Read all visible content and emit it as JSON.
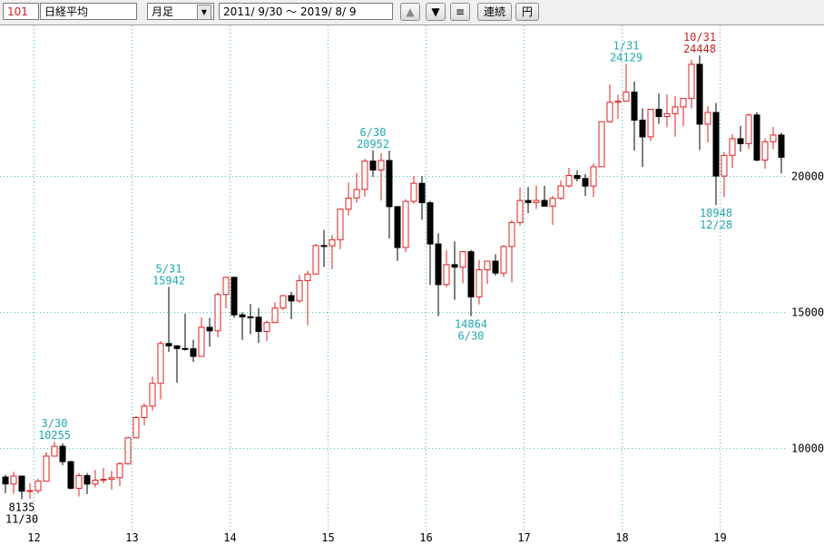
{
  "toolbar": {
    "code": "101",
    "name": "日経平均",
    "period": "月足",
    "range": "2011/ 9/30 ～ 2019/ 8/ 9",
    "buttons": [
      "▲",
      "▼",
      "≡",
      "連続",
      "円"
    ]
  },
  "chart_data": {
    "type": "candlestick",
    "categories": [
      null,
      null,
      null,
      null,
      "12",
      null,
      null,
      null,
      null,
      null,
      null,
      null,
      null,
      null,
      null,
      null,
      "13",
      null,
      null,
      null,
      null,
      null,
      null,
      null,
      null,
      null,
      null,
      null,
      "14",
      null,
      null,
      null,
      null,
      null,
      null,
      null,
      null,
      null,
      null,
      null,
      "15",
      null,
      null,
      null,
      null,
      null,
      null,
      null,
      null,
      null,
      null,
      null,
      "16",
      null,
      null,
      null,
      null,
      null,
      null,
      null,
      null,
      null,
      null,
      null,
      "17",
      null,
      null,
      null,
      null,
      null,
      null,
      null,
      null,
      null,
      null,
      null,
      "18",
      null,
      null,
      null,
      null,
      null,
      null,
      null,
      null,
      null,
      null,
      null,
      "19",
      null,
      null,
      null,
      null,
      null,
      null,
      null
    ],
    "open": [
      8955,
      8700,
      8988,
      8435,
      8455,
      8802,
      9723,
      10083,
      9520,
      8542,
      9006,
      8695,
      8839,
      8870,
      8928,
      9446,
      10395,
      11138,
      11559,
      12397,
      13860,
      13774,
      13677,
      13668,
      13388,
      14455,
      14327,
      15661,
      16291,
      14914,
      14841,
      14827,
      14304,
      14632,
      15162,
      15620,
      15425,
      16173,
      16413,
      17459,
      17450,
      17674,
      18797,
      19206,
      19520,
      20563,
      20235,
      20585,
      18890,
      17388,
      19083,
      19747,
      19033,
      17518,
      16026,
      16758,
      16666,
      17234,
      15575,
      16569,
      16887,
      16449,
      17425,
      18308,
      19114,
      19041,
      19118,
      18909,
      19196,
      19650,
      20033,
      19925,
      19646,
      20356,
      22011,
      22724,
      22764,
      23098,
      22068,
      21454,
      22467,
      22201,
      22304,
      22553,
      22865,
      24120,
      21920,
      22351,
      20014,
      20773,
      21385,
      21205,
      22258,
      20601,
      21275,
      21521
    ],
    "high": [
      9040,
      9152,
      9000,
      8723,
      8900,
      9866,
      10255,
      10190,
      9550,
      9100,
      9100,
      9222,
      9288,
      9180,
      9500,
      10433,
      11191,
      11662,
      12650,
      13950,
      15942,
      13800,
      14953,
      14000,
      14817,
      14800,
      15727,
      16320,
      16320,
      15005,
      15312,
      15165,
      14702,
      15376,
      15646,
      15759,
      16378,
      16533,
      17520,
      18030,
      17850,
      18826,
      19778,
      20133,
      20655,
      20952,
      20850,
      20946,
      18900,
      19160,
      20012,
      20012,
      19100,
      17905,
      17291,
      17613,
      17251,
      17300,
      16938,
      16888,
      17142,
      17473,
      18400,
      19592,
      19615,
      19668,
      19656,
      19289,
      19850,
      20318,
      20223,
      20080,
      20481,
      22011,
      23382,
      23000,
      24129,
      23486,
      22502,
      22467,
      23050,
      23011,
      22949,
      22869,
      24286,
      24448,
      22583,
      22698,
      20892,
      21556,
      21860,
      22307,
      22362,
      21400,
      21823,
      21600
    ],
    "low": [
      8359,
      8343,
      8135,
      8160,
      8349,
      8780,
      9750,
      9388,
      8500,
      8238,
      8328,
      8576,
      8725,
      8488,
      8619,
      9400,
      10398,
      10857,
      11400,
      11805,
      13556,
      12415,
      13600,
      13188,
      13400,
      13748,
      14087,
      15149,
      14808,
      13995,
      14203,
      13885,
      13964,
      14600,
      15100,
      14753,
      15350,
      14529,
      16400,
      16672,
      16592,
      17325,
      18570,
      19034,
      19258,
      19990,
      19115,
      17714,
      16901,
      17210,
      19000,
      18410,
      16017,
      14865,
      15930,
      15471,
      16070,
      14864,
      15300,
      16050,
      16356,
      16300,
      16111,
      18200,
      18650,
      18805,
      18909,
      18224,
      19144,
      19600,
      19813,
      19280,
      19240,
      20400,
      21972,
      22114,
      22900,
      20950,
      20347,
      21300,
      21931,
      21800,
      21462,
      21851,
      22500,
      20971,
      21243,
      18948,
      19241,
      20315,
      20911,
      21000,
      20553,
      20289,
      21003,
      20110
    ],
    "close": [
      8700,
      8988,
      8435,
      8455,
      8802,
      9723,
      10083,
      9520,
      8542,
      9006,
      8695,
      8839,
      8870,
      8928,
      9446,
      10395,
      11138,
      11559,
      12397,
      13860,
      13774,
      13677,
      13668,
      13388,
      14455,
      14327,
      15661,
      16291,
      14914,
      14841,
      14827,
      14304,
      14632,
      15162,
      15620,
      15425,
      16173,
      16413,
      17459,
      17450,
      17674,
      18797,
      19206,
      19520,
      20563,
      20235,
      20585,
      18890,
      17388,
      19083,
      19747,
      19033,
      17518,
      16026,
      16758,
      16666,
      17234,
      15575,
      16569,
      16887,
      16449,
      17425,
      18308,
      19114,
      19041,
      19118,
      18909,
      19196,
      19650,
      20033,
      19925,
      19646,
      20356,
      22011,
      22724,
      22764,
      23098,
      22068,
      21454,
      22467,
      22201,
      22304,
      22553,
      22865,
      24120,
      21920,
      22351,
      20014,
      20773,
      21385,
      21205,
      22258,
      20601,
      21275,
      21521,
      20704
    ],
    "up_color": "#e02020",
    "down_color": "#000000",
    "ylim": [
      6990,
      25550
    ],
    "yticks": [
      10000,
      15000,
      20000
    ],
    "grid": true,
    "grid_color": "#3cb8b8",
    "annotations": [
      {
        "date": "11/30",
        "value": 8135,
        "color": "#000000"
      },
      {
        "date": "3/30",
        "value": 10255,
        "color": "#20a8b0"
      },
      {
        "date": "5/31",
        "value": 15942,
        "color": "#20a8b0"
      },
      {
        "date": "6/30",
        "value": 20952,
        "color": "#20a8b0"
      },
      {
        "date": "6/30",
        "value": 14864,
        "color": "#20a8b0"
      },
      {
        "date": "1/31",
        "value": 24129,
        "color": "#20a8b0"
      },
      {
        "date": "10/31",
        "value": 24448,
        "color": "#d02020"
      },
      {
        "date": "12/28",
        "value": 18948,
        "color": "#20a8b0"
      }
    ]
  }
}
